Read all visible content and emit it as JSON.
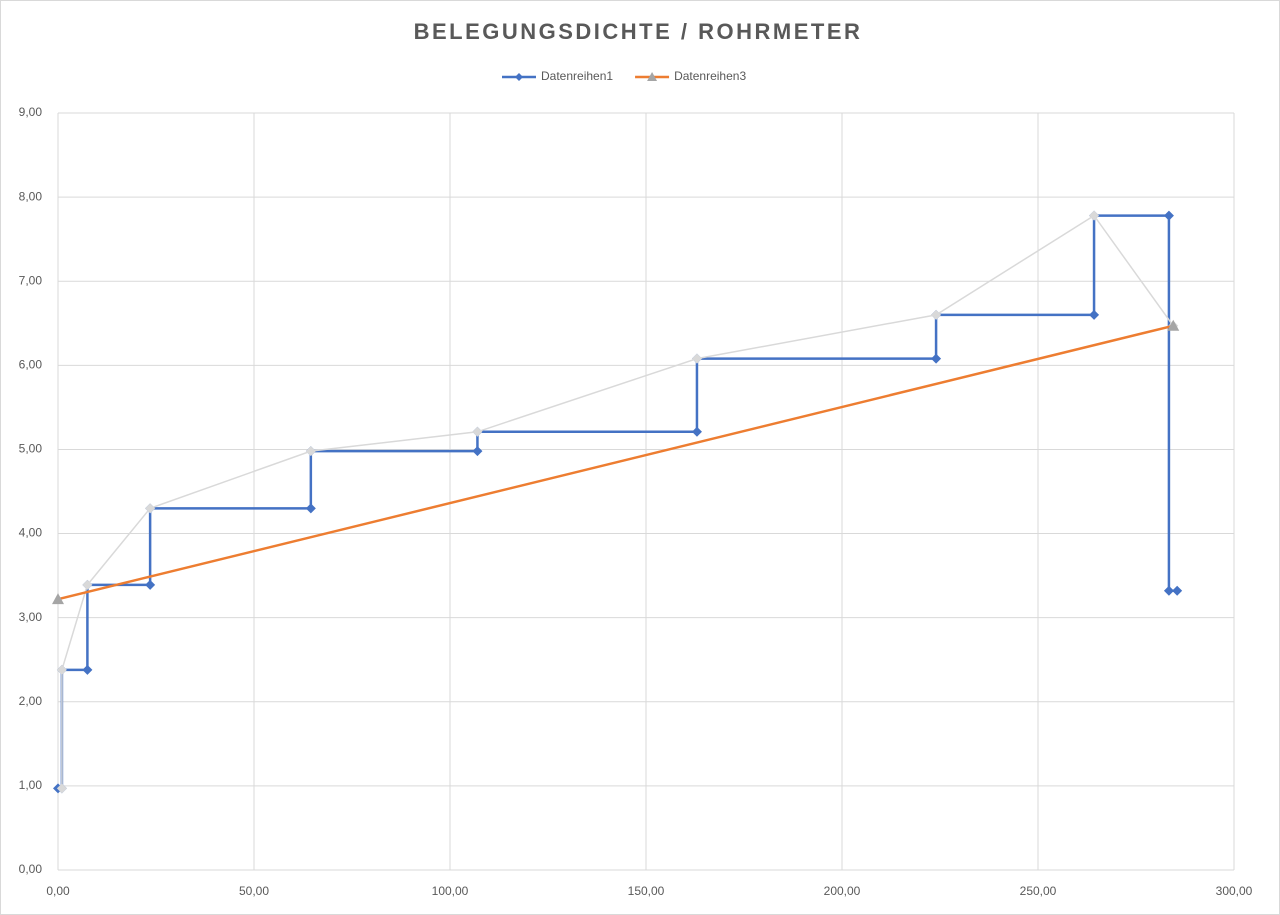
{
  "chart_data": {
    "type": "scatter",
    "title": "BELEGUNGSDICHTE / ROHRMETER",
    "series": [
      {
        "name": "Datenreihen1",
        "color": "#4472c4",
        "marker": "diamond",
        "x": [
          0,
          1,
          1,
          7.5,
          7.5,
          23.5,
          23.5,
          64.5,
          64.5,
          107,
          107,
          163,
          163,
          224,
          224,
          264.3,
          264.3,
          283.4,
          283.4,
          285.5
        ],
        "values": [
          0.97,
          0.97,
          2.38,
          2.38,
          3.39,
          3.39,
          4.3,
          4.3,
          4.98,
          4.98,
          5.21,
          5.21,
          6.08,
          6.08,
          6.6,
          6.6,
          7.78,
          7.78,
          3.32,
          3.32
        ]
      },
      {
        "color": "#d9d9d9",
        "marker": "diamond",
        "x": [
          1,
          1,
          7.5,
          23.5,
          64.5,
          107,
          163,
          224,
          264.3,
          284.5
        ],
        "values": [
          0.97,
          2.38,
          3.39,
          4.3,
          4.98,
          5.21,
          6.08,
          6.6,
          7.78,
          6.47
        ]
      },
      {
        "name": "Datenreihen3",
        "color": "#ed7d31",
        "marker": "triangle",
        "marker_color": "#a5a5a5",
        "x": [
          0,
          284.5
        ],
        "values": [
          3.22,
          6.47
        ]
      }
    ],
    "xlim": [
      0,
      300
    ],
    "xticks": [
      {
        "value": 0,
        "label": "0,00"
      },
      {
        "value": 50,
        "label": "50,00"
      },
      {
        "value": 100,
        "label": "100,00"
      },
      {
        "value": 150,
        "label": "150,00"
      },
      {
        "value": 200,
        "label": "200,00"
      },
      {
        "value": 250,
        "label": "250,00"
      },
      {
        "value": 300,
        "label": "300,00"
      }
    ],
    "ylim": [
      0,
      9
    ],
    "yticks": [
      {
        "value": 0,
        "label": "0,00"
      },
      {
        "value": 1,
        "label": "1,00"
      },
      {
        "value": 2,
        "label": "2,00"
      },
      {
        "value": 3,
        "label": "3,00"
      },
      {
        "value": 4,
        "label": "4,00"
      },
      {
        "value": 5,
        "label": "5,00"
      },
      {
        "value": 6,
        "label": "6,00"
      },
      {
        "value": 7,
        "label": "7,00"
      },
      {
        "value": 8,
        "label": "8,00"
      },
      {
        "value": 9,
        "label": "9,00"
      }
    ],
    "grid": true,
    "legend": "top"
  }
}
